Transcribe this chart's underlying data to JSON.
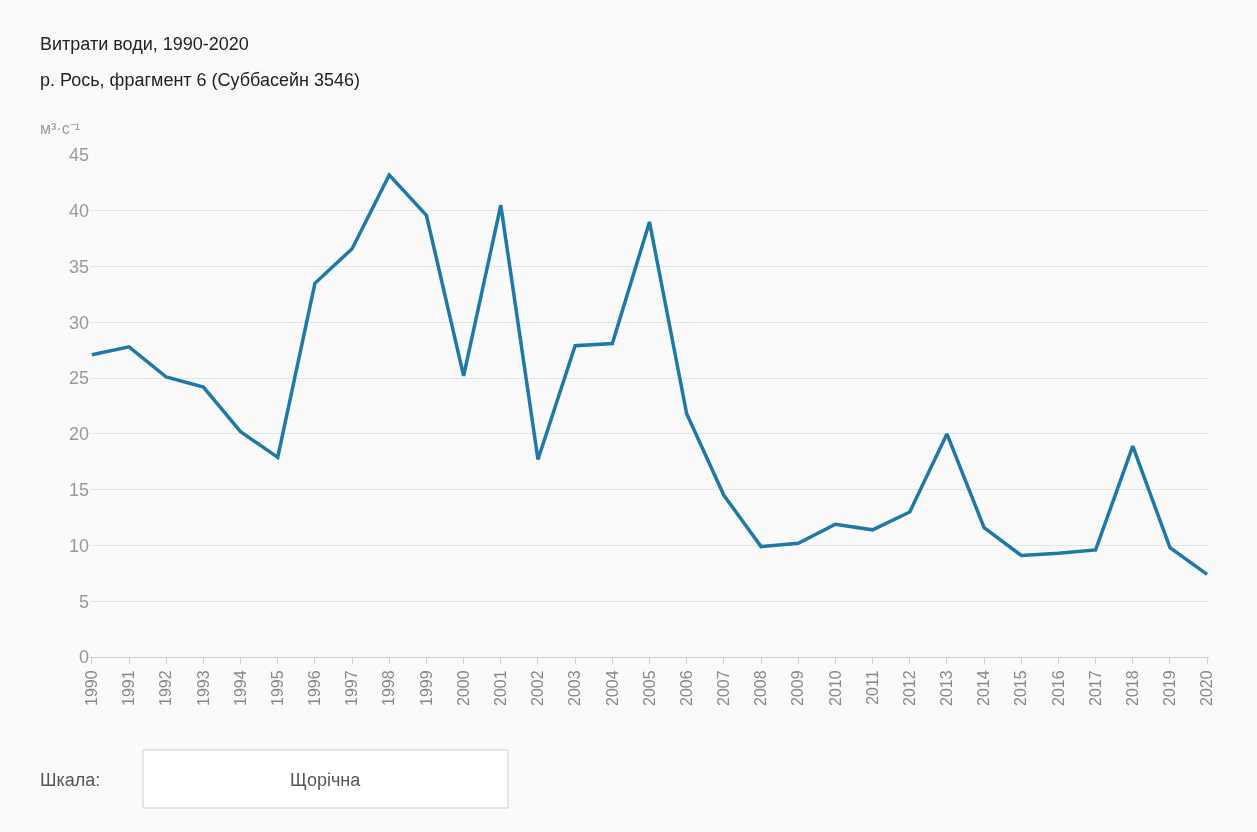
{
  "chart_data": {
    "type": "line",
    "title": "Витрати води, 1990-2020",
    "subtitle": "р. Рось, фрагмент 6 (Суббасейн 3546)",
    "ylabel": "м³·с⁻¹",
    "categories": [
      "1990",
      "1991",
      "1992",
      "1993",
      "1994",
      "1995",
      "1996",
      "1997",
      "1998",
      "1999",
      "2000",
      "2001",
      "2002",
      "2003",
      "2004",
      "2005",
      "2006",
      "2007",
      "2008",
      "2009",
      "2010",
      "2011",
      "2012",
      "2013",
      "2014",
      "2015",
      "2016",
      "2017",
      "2018",
      "2019",
      "2020"
    ],
    "series": [
      {
        "color": "#1f78a6",
        "values": [
          27.1,
          27.8,
          25.1,
          24.2,
          20.2,
          17.9,
          33.5,
          36.6,
          43.2,
          39.6,
          25.2,
          40.5,
          17.7,
          27.9,
          28.1,
          39.0,
          21.8,
          14.5,
          9.9,
          10.2,
          11.9,
          11.4,
          13.0,
          20.0,
          11.6,
          9.1,
          9.3,
          9.6,
          18.9,
          9.8,
          7.4
        ]
      }
    ],
    "ylim": [
      0,
      45
    ],
    "yticks": [
      0,
      5,
      10,
      15,
      20,
      25,
      30,
      35,
      40,
      45
    ],
    "grid": "y",
    "marker": "none",
    "line_style": "solid",
    "annotations": [
      "Шкала:",
      "Щорічна"
    ]
  }
}
